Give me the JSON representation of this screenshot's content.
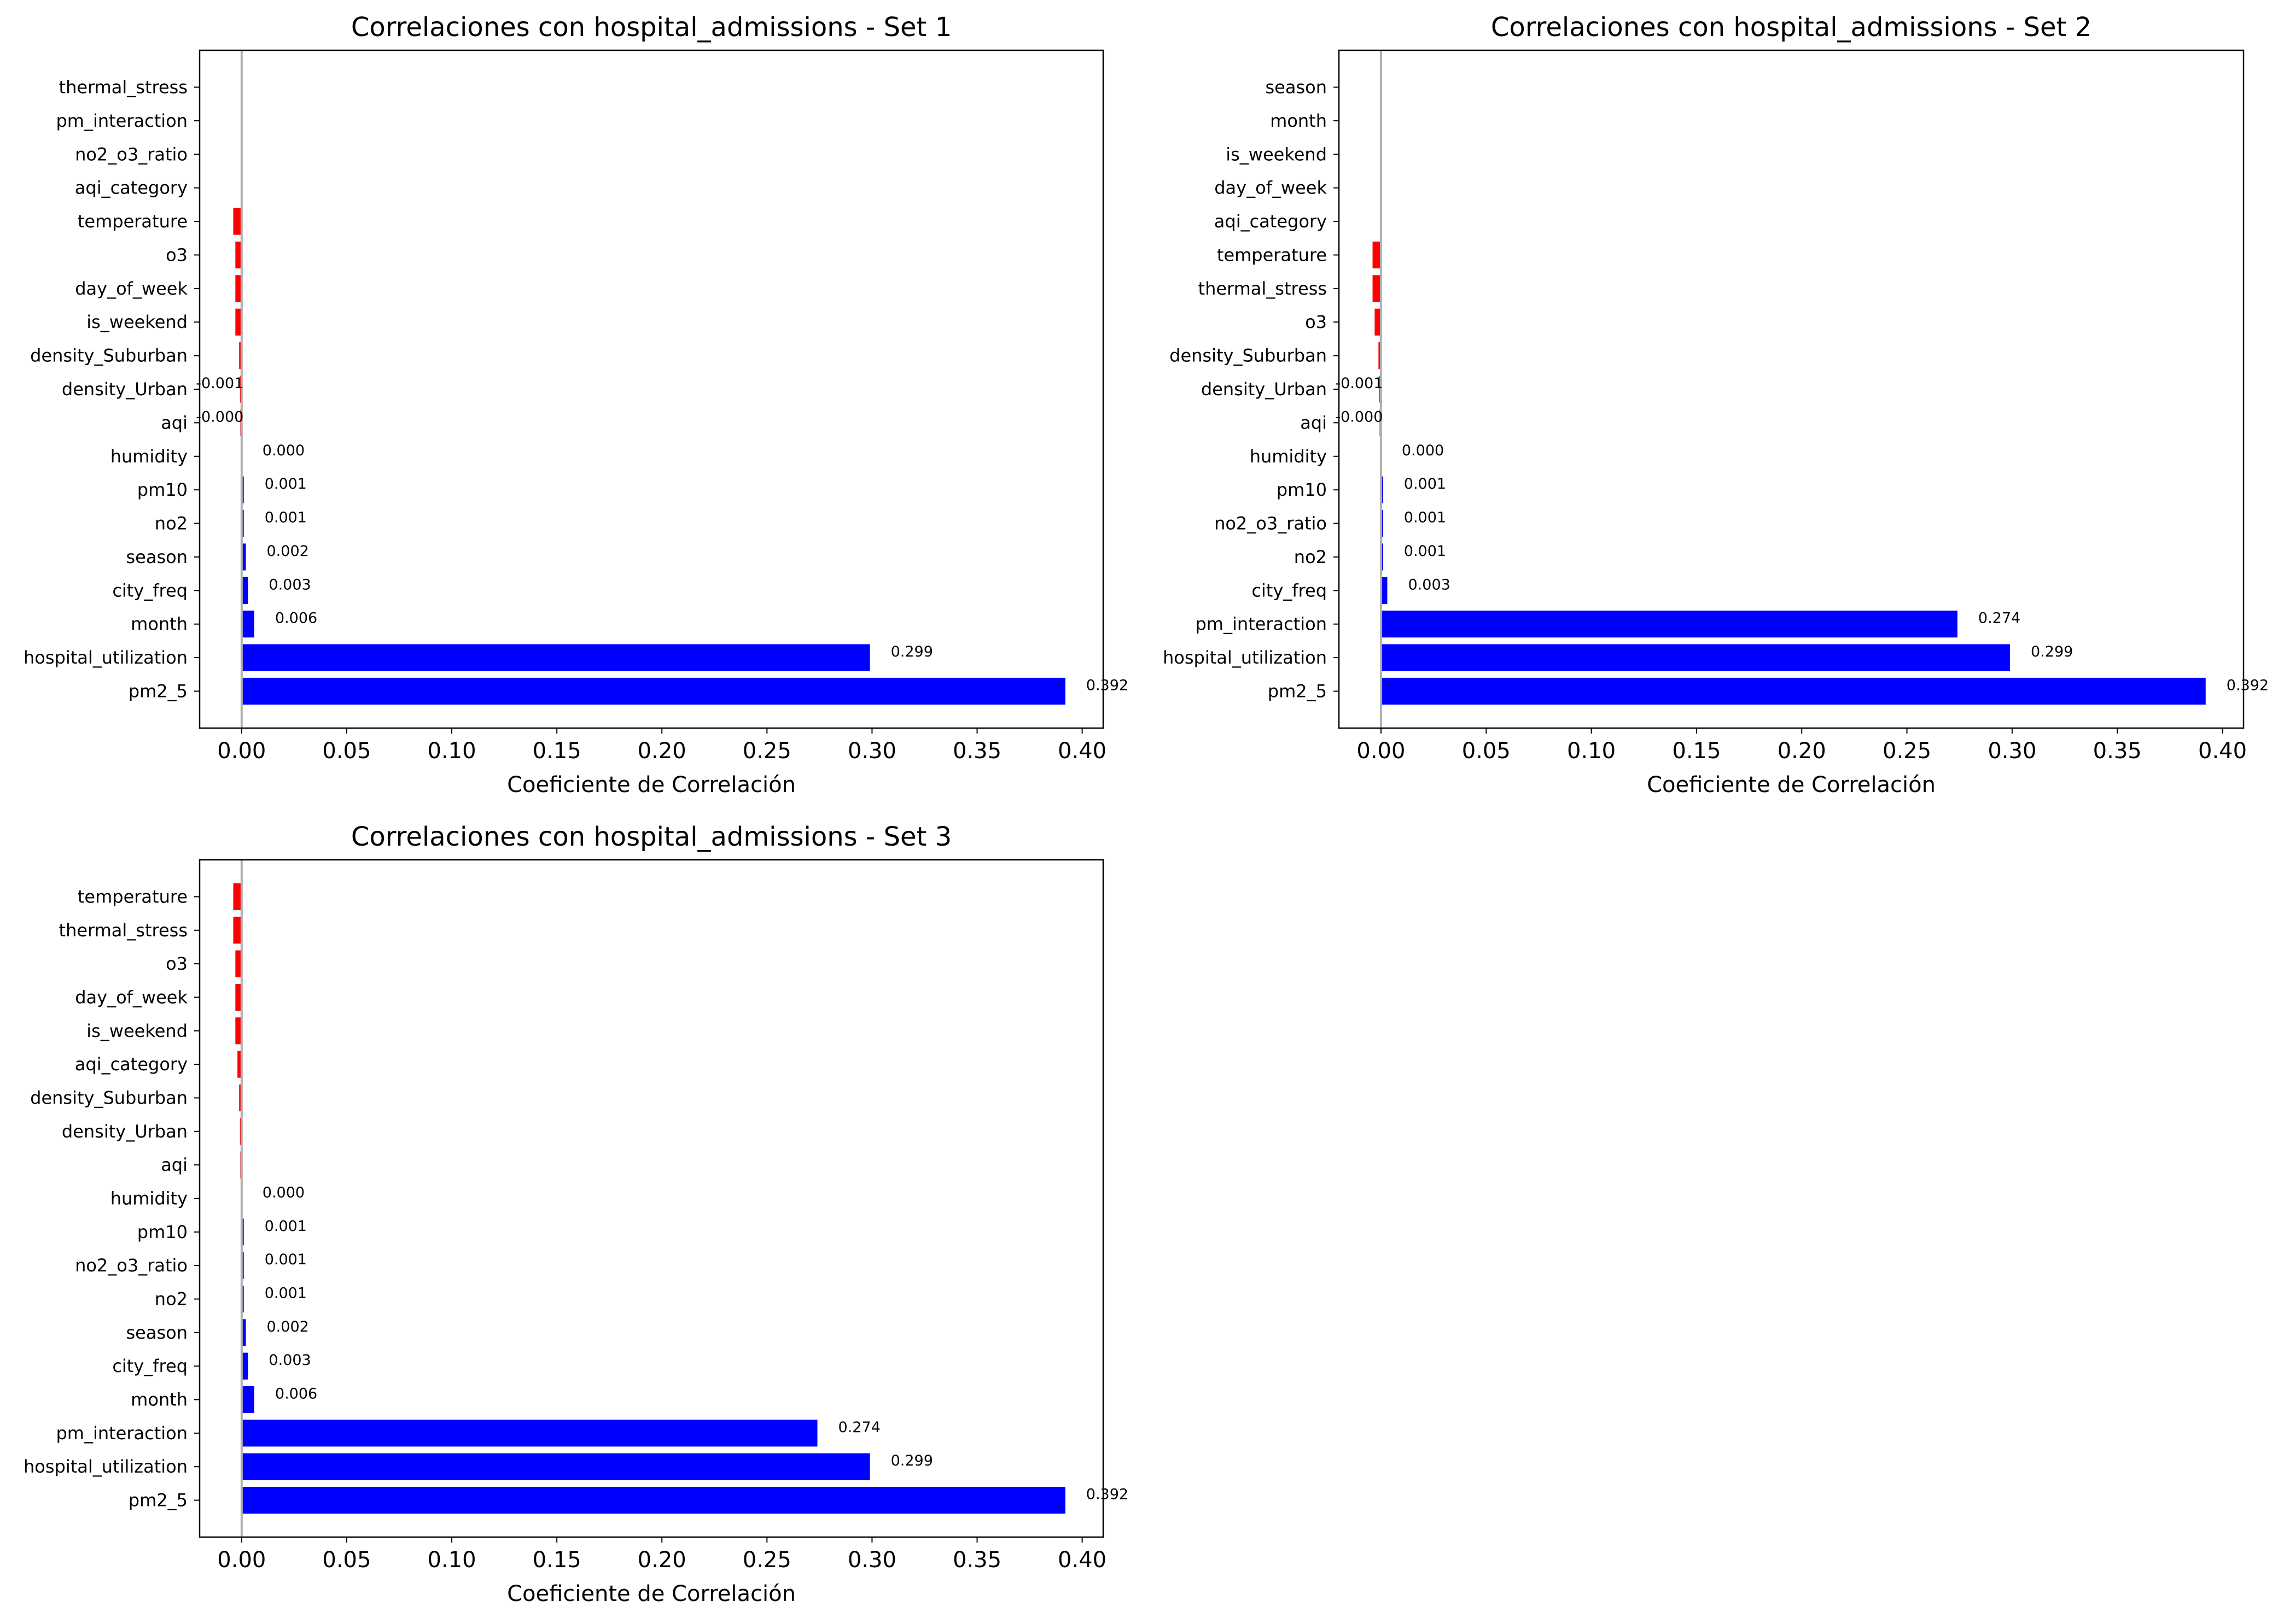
{
  "colors": {
    "positive": "#0000ff",
    "negative": "#ff0000",
    "zero_line": "#b0b0b0",
    "axes": "#000000",
    "background": "#ffffff"
  },
  "chart_data": [
    {
      "type": "bar",
      "orientation": "horizontal",
      "title": "Correlaciones con hospital_admissions - Set 1",
      "xlabel": "Coeficiente de Correlación",
      "ylabel": "",
      "xlim": [
        -0.02,
        0.41
      ],
      "xticks": [
        "0.00",
        "0.05",
        "0.10",
        "0.15",
        "0.20",
        "0.25",
        "0.30",
        "0.35",
        "0.40"
      ],
      "grid": false,
      "legend": "none",
      "categories": [
        "pm2_5",
        "hospital_utilization",
        "month",
        "city_freq",
        "season",
        "no2",
        "pm10",
        "humidity",
        "aqi",
        "density_Urban",
        "density_Suburban",
        "is_weekend",
        "day_of_week",
        "o3",
        "temperature",
        "aqi_category",
        "no2_o3_ratio",
        "pm_interaction",
        "thermal_stress"
      ],
      "values": [
        0.392,
        0.299,
        0.006,
        0.003,
        0.002,
        0.001,
        0.001,
        0.0,
        -0.0003,
        -0.0008,
        -0.0012,
        -0.003,
        -0.003,
        -0.003,
        -0.004,
        null,
        null,
        null,
        null
      ],
      "data_labels": [
        "0.392",
        "0.299",
        "0.006",
        "0.003",
        "0.002",
        "0.001",
        "0.001",
        "0.000",
        "-0.000",
        "-0.001",
        "",
        "",
        "",
        "",
        "",
        "",
        "",
        "",
        ""
      ]
    },
    {
      "type": "bar",
      "orientation": "horizontal",
      "title": "Correlaciones con hospital_admissions - Set 2",
      "xlabel": "Coeficiente de Correlación",
      "ylabel": "",
      "xlim": [
        -0.02,
        0.41
      ],
      "xticks": [
        "0.00",
        "0.05",
        "0.10",
        "0.15",
        "0.20",
        "0.25",
        "0.30",
        "0.35",
        "0.40"
      ],
      "grid": false,
      "legend": "none",
      "categories": [
        "pm2_5",
        "hospital_utilization",
        "pm_interaction",
        "city_freq",
        "no2",
        "no2_o3_ratio",
        "pm10",
        "humidity",
        "aqi",
        "density_Urban",
        "density_Suburban",
        "o3",
        "thermal_stress",
        "temperature",
        "aqi_category",
        "day_of_week",
        "is_weekend",
        "month",
        "season"
      ],
      "values": [
        0.392,
        0.299,
        0.274,
        0.003,
        0.001,
        0.001,
        0.001,
        0.0,
        -0.0003,
        -0.0008,
        -0.0012,
        -0.003,
        -0.004,
        -0.004,
        null,
        null,
        null,
        null,
        null
      ],
      "data_labels": [
        "0.392",
        "0.299",
        "0.274",
        "0.003",
        "0.001",
        "0.001",
        "0.001",
        "0.000",
        "-0.000",
        "-0.001",
        "",
        "",
        "",
        "",
        "",
        "",
        "",
        "",
        ""
      ]
    },
    {
      "type": "bar",
      "orientation": "horizontal",
      "title": "Correlaciones con hospital_admissions - Set 3",
      "xlabel": "Coeficiente de Correlación",
      "ylabel": "",
      "xlim": [
        -0.02,
        0.41
      ],
      "xticks": [
        "0.00",
        "0.05",
        "0.10",
        "0.15",
        "0.20",
        "0.25",
        "0.30",
        "0.35",
        "0.40"
      ],
      "grid": false,
      "legend": "none",
      "categories": [
        "pm2_5",
        "hospital_utilization",
        "pm_interaction",
        "month",
        "city_freq",
        "season",
        "no2",
        "no2_o3_ratio",
        "pm10",
        "humidity",
        "aqi",
        "density_Urban",
        "density_Suburban",
        "aqi_category",
        "is_weekend",
        "day_of_week",
        "o3",
        "thermal_stress",
        "temperature"
      ],
      "values": [
        0.392,
        0.299,
        0.274,
        0.006,
        0.003,
        0.002,
        0.001,
        0.001,
        0.001,
        0.0,
        -0.0003,
        -0.0008,
        -0.0012,
        -0.002,
        -0.003,
        -0.003,
        -0.003,
        -0.004,
        -0.004
      ],
      "data_labels": [
        "0.392",
        "0.299",
        "0.274",
        "0.006",
        "0.003",
        "0.002",
        "0.001",
        "0.001",
        "0.001",
        "0.000",
        "",
        "",
        "",
        "",
        "",
        "",
        "",
        "",
        ""
      ]
    }
  ]
}
